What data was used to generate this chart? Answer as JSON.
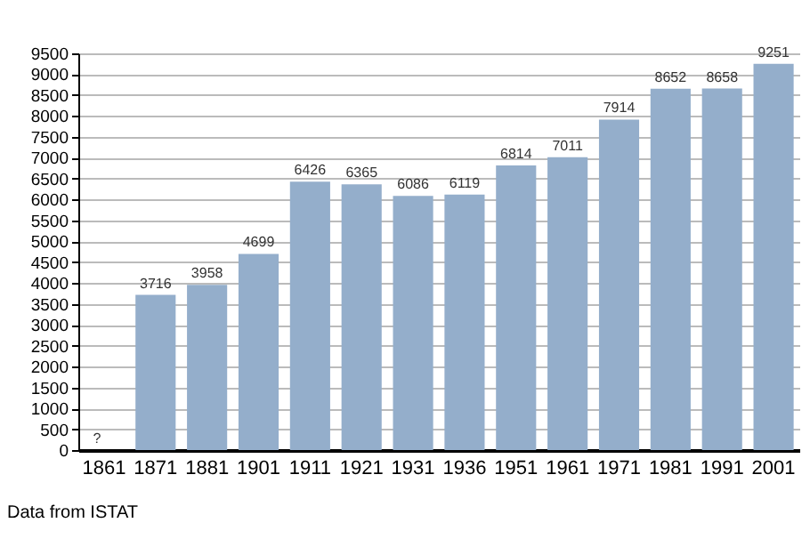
{
  "chart_data": {
    "type": "bar",
    "categories": [
      "1861",
      "1871",
      "1881",
      "1901",
      "1911",
      "1921",
      "1931",
      "1936",
      "1951",
      "1961",
      "1971",
      "1981",
      "1991",
      "2001"
    ],
    "values": [
      null,
      3716,
      3958,
      4699,
      6426,
      6365,
      6086,
      6119,
      6814,
      7011,
      7914,
      8652,
      8658,
      9251
    ],
    "value_labels": [
      "?",
      "3716",
      "3958",
      "4699",
      "6426",
      "6365",
      "6086",
      "6119",
      "6814",
      "7011",
      "7914",
      "8652",
      "8658",
      "9251"
    ],
    "color": "#94aecb",
    "ylim": [
      0,
      9500
    ],
    "yticks": [
      0,
      500,
      1000,
      1500,
      2000,
      2500,
      3000,
      3500,
      4000,
      4500,
      5000,
      5500,
      6000,
      6500,
      7000,
      7500,
      8000,
      8500,
      9000,
      9500
    ],
    "grid": "y",
    "annotations": [
      "Data from ISTAT"
    ]
  }
}
